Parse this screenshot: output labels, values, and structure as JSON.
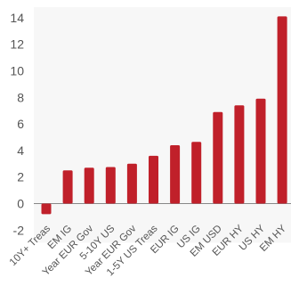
{
  "chart_data": {
    "type": "bar",
    "categories": [
      "10Y+ Treas",
      "EM IG",
      "Year EUR Gov",
      "5-10Y US",
      "Year EUR Gov",
      "1-5Y US Treas",
      "EUR IG",
      "US IG",
      "EM USD",
      "EUR HY",
      "US HY",
      "EM HY"
    ],
    "values": [
      -0.8,
      2.5,
      2.7,
      2.75,
      3.0,
      3.6,
      4.4,
      4.65,
      6.9,
      7.4,
      7.9,
      14.1
    ],
    "ylim": [
      -2,
      14.5
    ],
    "yticks": [
      -2,
      0,
      2,
      4,
      6,
      8,
      10,
      12,
      14
    ],
    "title": "",
    "xlabel": "",
    "ylabel": "",
    "grid": false,
    "colors": {
      "bar": "#c0202a",
      "plot_background": "#f7f7f7",
      "zero_line": "#888888",
      "text": "#555555"
    }
  }
}
